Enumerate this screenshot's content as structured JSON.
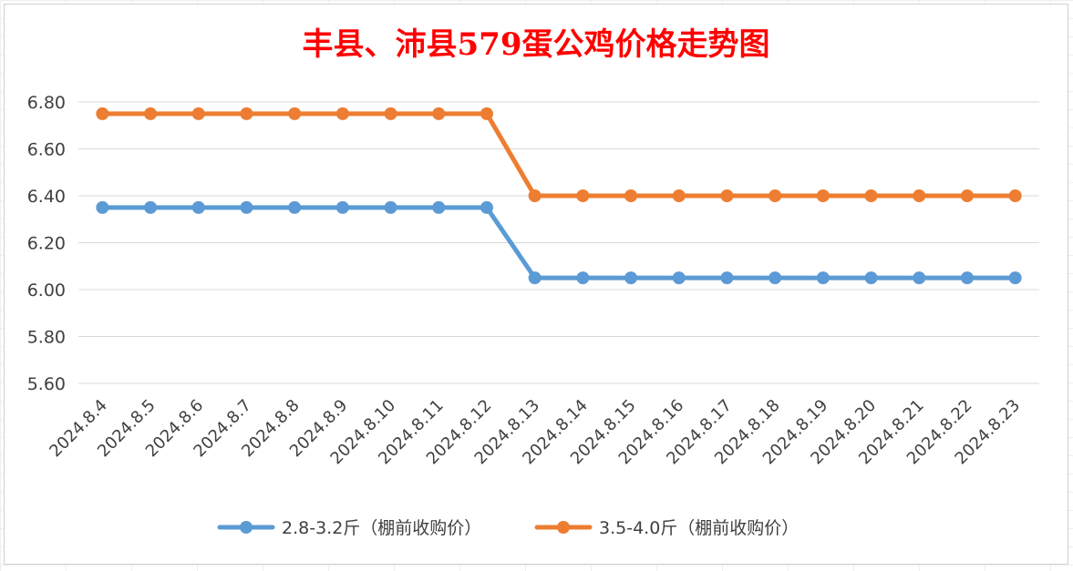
{
  "chart_data": {
    "type": "line",
    "title": "丰县、沛县579蛋公鸡价格走势图",
    "xlabel": "",
    "ylabel": "",
    "ylim": [
      5.6,
      6.8
    ],
    "yticks": [
      "6.80",
      "6.60",
      "6.40",
      "6.20",
      "6.00",
      "5.80",
      "5.60"
    ],
    "ytick_values": [
      6.8,
      6.6,
      6.4,
      6.2,
      6.0,
      5.8,
      5.6
    ],
    "grid": "horizontal",
    "legend_position": "bottom",
    "categories": [
      "2024.8.4",
      "2024.8.5",
      "2024.8.6",
      "2024.8.7",
      "2024.8.8",
      "2024.8.9",
      "2024.8.10",
      "2024.8.11",
      "2024.8.12",
      "2024.8.13",
      "2024.8.14",
      "2024.8.15",
      "2024.8.16",
      "2024.8.17",
      "2024.8.18",
      "2024.8.19",
      "2024.8.20",
      "2024.8.21",
      "2024.8.22",
      "2024.8.23"
    ],
    "series": [
      {
        "name": "2.8-3.2斤（棚前收购价）",
        "color": "#5b9bd5",
        "values": [
          6.35,
          6.35,
          6.35,
          6.35,
          6.35,
          6.35,
          6.35,
          6.35,
          6.35,
          6.05,
          6.05,
          6.05,
          6.05,
          6.05,
          6.05,
          6.05,
          6.05,
          6.05,
          6.05,
          6.05
        ]
      },
      {
        "name": "3.5-4.0斤（棚前收购价）",
        "color": "#ed7d31",
        "values": [
          6.75,
          6.75,
          6.75,
          6.75,
          6.75,
          6.75,
          6.75,
          6.75,
          6.75,
          6.4,
          6.4,
          6.4,
          6.4,
          6.4,
          6.4,
          6.4,
          6.4,
          6.4,
          6.4,
          6.4
        ]
      }
    ]
  }
}
